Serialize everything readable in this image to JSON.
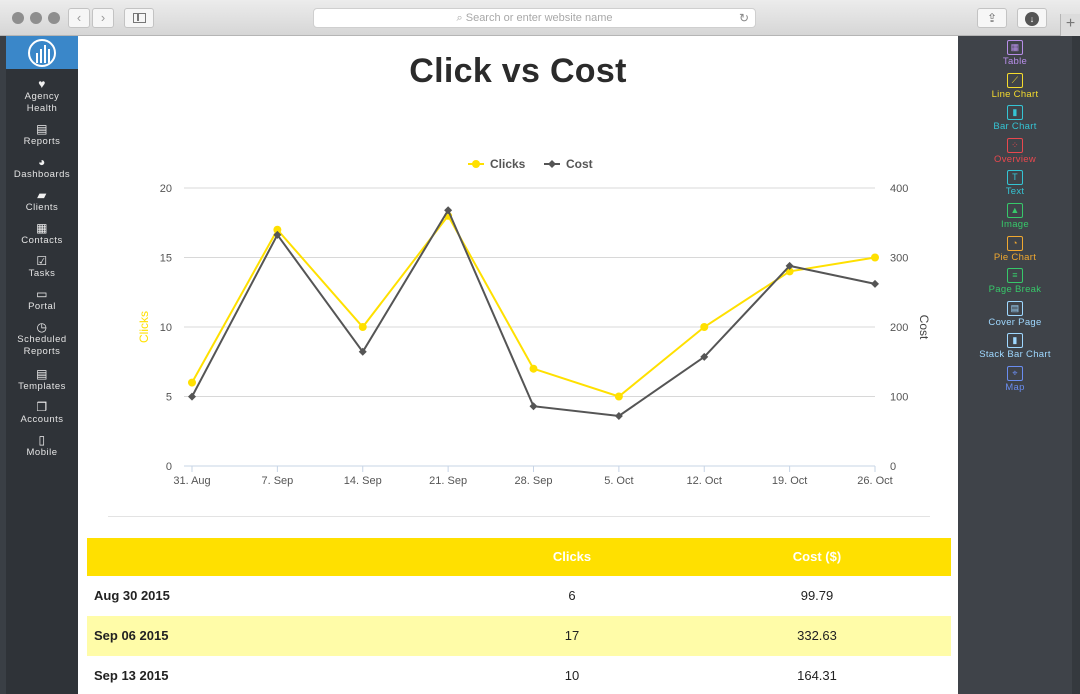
{
  "browser": {
    "address_placeholder": "Search or enter website name",
    "reload_icon": "reload-icon",
    "newtab_label": "+"
  },
  "leftnav": {
    "items": [
      {
        "label": "Agency\nHealth",
        "icon": "heart-icon"
      },
      {
        "label": "Reports",
        "icon": "report-icon"
      },
      {
        "label": "Dashboards",
        "icon": "pie-icon"
      },
      {
        "label": "Clients",
        "icon": "briefcase-icon"
      },
      {
        "label": "Contacts",
        "icon": "contacts-icon"
      },
      {
        "label": "Tasks",
        "icon": "checkbox-icon"
      },
      {
        "label": "Portal",
        "icon": "portal-icon"
      },
      {
        "label": "Scheduled\nReports",
        "icon": "clock-icon"
      },
      {
        "label": "Templates",
        "icon": "template-icon"
      },
      {
        "label": "Accounts",
        "icon": "accounts-icon"
      },
      {
        "label": "Mobile",
        "icon": "mobile-icon"
      }
    ]
  },
  "page": {
    "title": "Click vs Cost"
  },
  "chart_data": {
    "type": "line",
    "title": "Click vs Cost",
    "categories": [
      "31. Aug",
      "7. Sep",
      "14. Sep",
      "21. Sep",
      "28. Sep",
      "5. Oct",
      "12. Oct",
      "19. Oct",
      "26. Oct"
    ],
    "series": [
      {
        "name": "Clicks",
        "axis": "left",
        "color": "#ffe000",
        "values": [
          6,
          17,
          10,
          18,
          7,
          5,
          10,
          14,
          15
        ]
      },
      {
        "name": "Cost",
        "axis": "right",
        "color": "#555555",
        "values": [
          99.79,
          332.63,
          164.31,
          368,
          86,
          72,
          157,
          288,
          262
        ]
      }
    ],
    "ylabel": "Clicks",
    "y2label": "Cost",
    "ylim": [
      0,
      20
    ],
    "y2lim": [
      0,
      400
    ],
    "yticks": [
      0,
      5,
      10,
      15,
      20
    ],
    "y2ticks": [
      0,
      100,
      200,
      300,
      400
    ],
    "legend": "top-center",
    "grid": true
  },
  "table": {
    "headers": [
      "",
      "Clicks",
      "Cost ($)"
    ],
    "rows": [
      [
        "Aug 30 2015",
        "6",
        "99.79"
      ],
      [
        "Sep 06 2015",
        "17",
        "332.63"
      ],
      [
        "Sep 13 2015",
        "10",
        "164.31"
      ]
    ]
  },
  "widgets": [
    {
      "label": "Table",
      "icon": "table-icon",
      "color": "#b78ee8"
    },
    {
      "label": "Line Chart",
      "icon": "line-chart-icon",
      "color": "#f5dc2e"
    },
    {
      "label": "Bar Chart",
      "icon": "bar-chart-icon",
      "color": "#35c4d4"
    },
    {
      "label": "Overview",
      "icon": "overview-icon",
      "color": "#e9484e"
    },
    {
      "label": "Text",
      "icon": "text-icon",
      "color": "#35c4d4"
    },
    {
      "label": "Image",
      "icon": "image-icon",
      "color": "#37c86a"
    },
    {
      "label": "Pie Chart",
      "icon": "pie-chart-icon",
      "color": "#f0a830"
    },
    {
      "label": "Page Break",
      "icon": "page-break-icon",
      "color": "#37c86a"
    },
    {
      "label": "Cover Page",
      "icon": "cover-page-icon",
      "color": "#9fd8ff"
    },
    {
      "label": "Stack Bar Chart",
      "icon": "stack-bar-chart-icon",
      "color": "#9fd8ff"
    },
    {
      "label": "Map",
      "icon": "map-icon",
      "color": "#6a8df0"
    }
  ]
}
